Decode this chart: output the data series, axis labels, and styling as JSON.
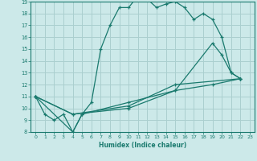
{
  "xlabel": "Humidex (Indice chaleur)",
  "xlim": [
    -0.5,
    23.5
  ],
  "ylim": [
    8,
    19
  ],
  "yticks": [
    8,
    9,
    10,
    11,
    12,
    13,
    14,
    15,
    16,
    17,
    18,
    19
  ],
  "xticks": [
    0,
    1,
    2,
    3,
    4,
    5,
    6,
    7,
    8,
    9,
    10,
    11,
    12,
    13,
    14,
    15,
    16,
    17,
    18,
    19,
    20,
    21,
    22,
    23
  ],
  "bg_color": "#cce9e9",
  "grid_color": "#aacfcf",
  "line_color": "#1a7a6e",
  "lines": [
    {
      "x": [
        0,
        1,
        2,
        3,
        4,
        5,
        6,
        7,
        8,
        9,
        10,
        11,
        12,
        13,
        14,
        15,
        16,
        17,
        18,
        19,
        20,
        21,
        22
      ],
      "y": [
        11,
        9.5,
        9,
        9.5,
        8,
        9.5,
        10.5,
        15,
        17,
        18.5,
        18.5,
        19.5,
        19.2,
        18.5,
        18.8,
        19,
        18.5,
        17.5,
        18,
        17.5,
        16,
        13,
        12.5
      ],
      "style": "solid"
    },
    {
      "x": [
        0,
        4,
        5,
        10,
        15,
        19,
        20,
        21,
        22
      ],
      "y": [
        11,
        8,
        9.5,
        10.5,
        11.5,
        15.5,
        14.5,
        13,
        12.5
      ],
      "style": "solid"
    },
    {
      "x": [
        0,
        4,
        10,
        15,
        19,
        22
      ],
      "y": [
        11,
        9.5,
        10,
        11.5,
        12,
        12.5
      ],
      "style": "solid"
    },
    {
      "x": [
        0,
        4,
        10,
        15,
        22
      ],
      "y": [
        11,
        9.5,
        10.2,
        12,
        12.5
      ],
      "style": "solid"
    }
  ]
}
